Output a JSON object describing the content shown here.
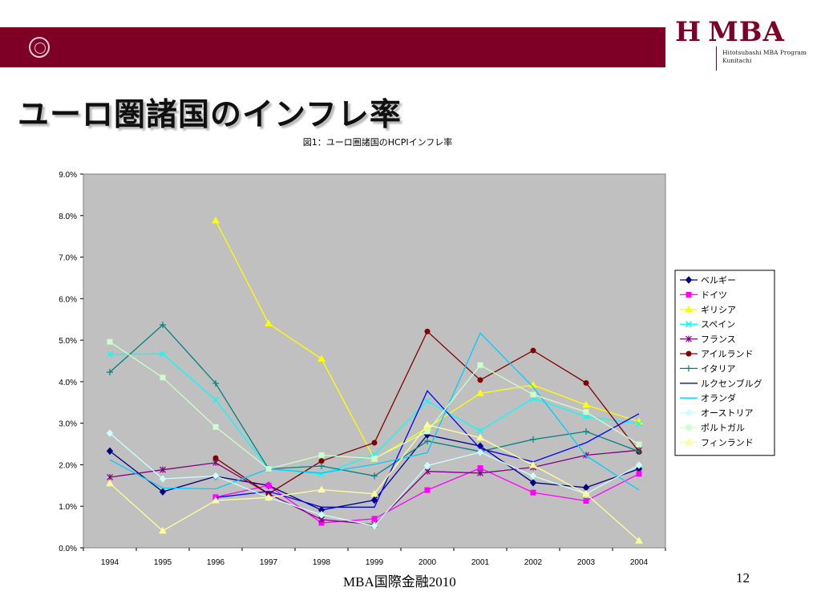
{
  "header": {
    "logo_text": "MBA",
    "logo_mark": "H",
    "logo_subtitle_line1": "Hitotsubashi MBA Program",
    "logo_subtitle_line2": "Kunitachi",
    "seal_icon": "university-seal-icon"
  },
  "slide": {
    "title": "ユーロ圏諸国のインフレ率",
    "footer": "MBA国際金融2010",
    "page_number": "12"
  },
  "colors": {
    "header_band": "#7f0026",
    "plot_background": "#c0c0c0"
  },
  "chart_data": {
    "type": "line",
    "title": "図1：ユーロ圏諸国のHCPIインフレ率",
    "xlabel": "",
    "ylabel": "",
    "ylim": [
      0,
      0.09
    ],
    "y_ticks": [
      "0.0%",
      "1.0%",
      "2.0%",
      "3.0%",
      "4.0%",
      "5.0%",
      "6.0%",
      "7.0%",
      "8.0%",
      "9.0%"
    ],
    "categories": [
      "1994",
      "1995",
      "1996",
      "1997",
      "1998",
      "1999",
      "2000",
      "2001",
      "2002",
      "2003",
      "2004"
    ],
    "grid": false,
    "legend_position": "right",
    "series": [
      {
        "name": "ベルギー",
        "color": "#000080",
        "marker": "diamond",
        "values": [
          0.0233,
          0.0135,
          0.0172,
          0.015,
          0.0091,
          0.0115,
          0.0272,
          0.0245,
          0.0157,
          0.0145,
          0.019
        ]
      },
      {
        "name": "ドイツ",
        "color": "#ff00ff",
        "marker": "square",
        "values": [
          null,
          null,
          0.0122,
          0.015,
          0.006,
          0.007,
          0.0139,
          0.0192,
          0.0133,
          0.0113,
          0.0178
        ]
      },
      {
        "name": "ギリシア",
        "color": "#ffff00",
        "marker": "triangle",
        "values": [
          null,
          null,
          0.0788,
          0.054,
          0.0455,
          0.0214,
          0.0289,
          0.0372,
          0.0392,
          0.0344,
          0.0304
        ]
      },
      {
        "name": "スペイン",
        "color": "#00ffff",
        "marker": "x",
        "values": [
          0.0466,
          0.0467,
          0.0356,
          0.019,
          0.0178,
          0.0224,
          0.0353,
          0.0282,
          0.036,
          0.0316,
          0.0299
        ]
      },
      {
        "name": "フランス",
        "color": "#800080",
        "marker": "star",
        "values": [
          0.017,
          0.0188,
          0.0205,
          0.013,
          0.0068,
          0.0056,
          0.0184,
          0.018,
          0.0194,
          0.0223,
          0.0235
        ]
      },
      {
        "name": "アイルランド",
        "color": "#800000",
        "marker": "circle",
        "values": [
          null,
          null,
          0.0216,
          0.013,
          0.0209,
          0.0253,
          0.0521,
          0.0404,
          0.0475,
          0.0397,
          0.0231
        ]
      },
      {
        "name": "イタリア",
        "color": "#008080",
        "marker": "plus",
        "values": [
          0.0423,
          0.0537,
          0.0396,
          0.019,
          0.0197,
          0.0173,
          0.0257,
          0.0232,
          0.0261,
          0.028,
          0.0232
        ]
      },
      {
        "name": "ルクセンブルグ",
        "color": "#0000ff",
        "marker": "none",
        "values": [
          null,
          null,
          0.0121,
          0.0136,
          0.0098,
          0.0098,
          0.0378,
          0.0239,
          0.0207,
          0.0253,
          0.0323
        ]
      },
      {
        "name": "オランダ",
        "color": "#00ccff",
        "marker": "none",
        "values": [
          0.0212,
          0.0144,
          0.0142,
          0.019,
          0.018,
          0.0201,
          0.0229,
          0.0517,
          0.0387,
          0.0222,
          0.0139
        ]
      },
      {
        "name": "オーストリア",
        "color": "#ccffff",
        "marker": "diamond",
        "values": [
          0.0276,
          0.0166,
          0.0173,
          0.0121,
          0.008,
          0.0053,
          0.0198,
          0.023,
          0.0173,
          0.013,
          0.0199
        ]
      },
      {
        "name": "ポルトガル",
        "color": "#ccffcc",
        "marker": "square",
        "values": [
          0.0496,
          0.041,
          0.0291,
          0.019,
          0.0223,
          0.0215,
          0.028,
          0.044,
          0.0369,
          0.0327,
          0.0249
        ]
      },
      {
        "name": "フィンランド",
        "color": "#ffff99",
        "marker": "triangle",
        "values": [
          0.0155,
          0.0041,
          0.0114,
          0.0121,
          0.014,
          0.013,
          0.0296,
          0.0265,
          0.0199,
          0.013,
          0.0017
        ]
      }
    ]
  }
}
